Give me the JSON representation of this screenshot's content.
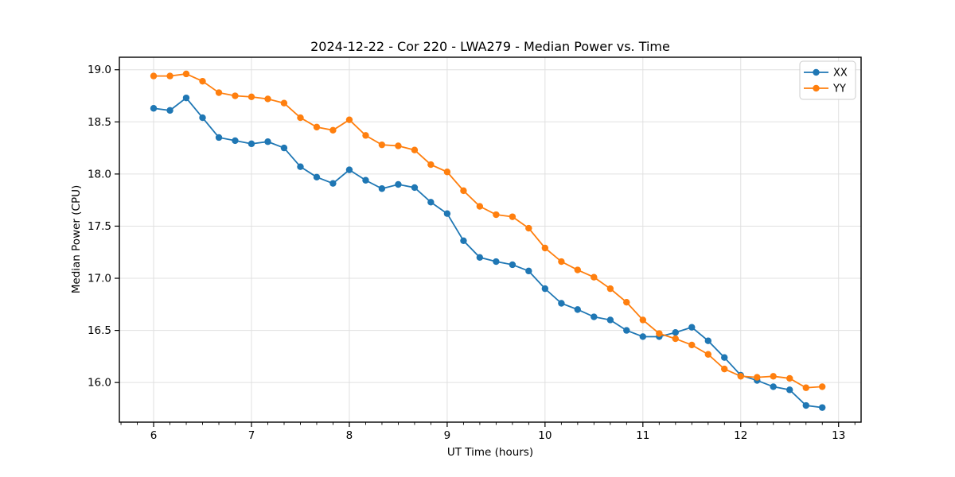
{
  "chart_data": {
    "type": "line",
    "title": "2024-12-22 - Cor 220 - LWA279 - Median Power vs. Time",
    "xlabel": "UT Time (hours)",
    "ylabel": "Median Power (CPU)",
    "xlim": [
      5.65,
      13.23
    ],
    "ylim": [
      15.62,
      19.12
    ],
    "grid": true,
    "legend_position": "upper right",
    "xticks": {
      "values": [
        6,
        7,
        8,
        9,
        10,
        11,
        12,
        13
      ],
      "labels": [
        "6",
        "7",
        "8",
        "9",
        "10",
        "11",
        "12",
        "13"
      ]
    },
    "yticks": {
      "values": [
        16.0,
        16.5,
        17.0,
        17.5,
        18.0,
        18.5,
        19.0
      ],
      "labels": [
        "16.0",
        "16.5",
        "17.0",
        "17.5",
        "18.0",
        "18.5",
        "19.0"
      ]
    },
    "minor_xtick_step": 0.16667,
    "x": [
      6.0,
      6.167,
      6.333,
      6.5,
      6.667,
      6.833,
      7.0,
      7.167,
      7.333,
      7.5,
      7.667,
      7.833,
      8.0,
      8.167,
      8.333,
      8.5,
      8.667,
      8.833,
      9.0,
      9.167,
      9.333,
      9.5,
      9.667,
      9.833,
      10.0,
      10.167,
      10.333,
      10.5,
      10.667,
      10.833,
      11.0,
      11.167,
      11.333,
      11.5,
      11.667,
      11.833,
      12.0,
      12.167,
      12.333,
      12.5,
      12.667,
      12.833
    ],
    "series": [
      {
        "name": "XX",
        "color": "#1f77b4",
        "values": [
          18.63,
          18.61,
          18.73,
          18.54,
          18.35,
          18.32,
          18.29,
          18.31,
          18.25,
          18.07,
          17.97,
          17.91,
          18.04,
          17.94,
          17.86,
          17.9,
          17.87,
          17.73,
          17.62,
          17.36,
          17.2,
          17.16,
          17.13,
          17.07,
          16.9,
          16.76,
          16.7,
          16.63,
          16.6,
          16.5,
          16.44,
          16.44,
          16.48,
          16.53,
          16.4,
          16.24,
          16.07,
          16.02,
          15.96,
          15.93,
          15.78,
          15.76
        ]
      },
      {
        "name": "YY",
        "color": "#ff7f0e",
        "values": [
          18.94,
          18.94,
          18.96,
          18.89,
          18.78,
          18.75,
          18.74,
          18.72,
          18.68,
          18.54,
          18.45,
          18.42,
          18.52,
          18.37,
          18.28,
          18.27,
          18.23,
          18.09,
          18.02,
          17.84,
          17.69,
          17.61,
          17.59,
          17.48,
          17.29,
          17.16,
          17.08,
          17.01,
          16.9,
          16.77,
          16.6,
          16.47,
          16.42,
          16.36,
          16.27,
          16.13,
          16.06,
          16.05,
          16.06,
          16.04,
          15.95,
          15.96
        ]
      }
    ]
  },
  "colors": {
    "grid": "#e0e0e0",
    "spine": "#000000",
    "tick": "#000000",
    "text": "#000000",
    "legend_border": "#cccccc",
    "background": "#ffffff"
  }
}
